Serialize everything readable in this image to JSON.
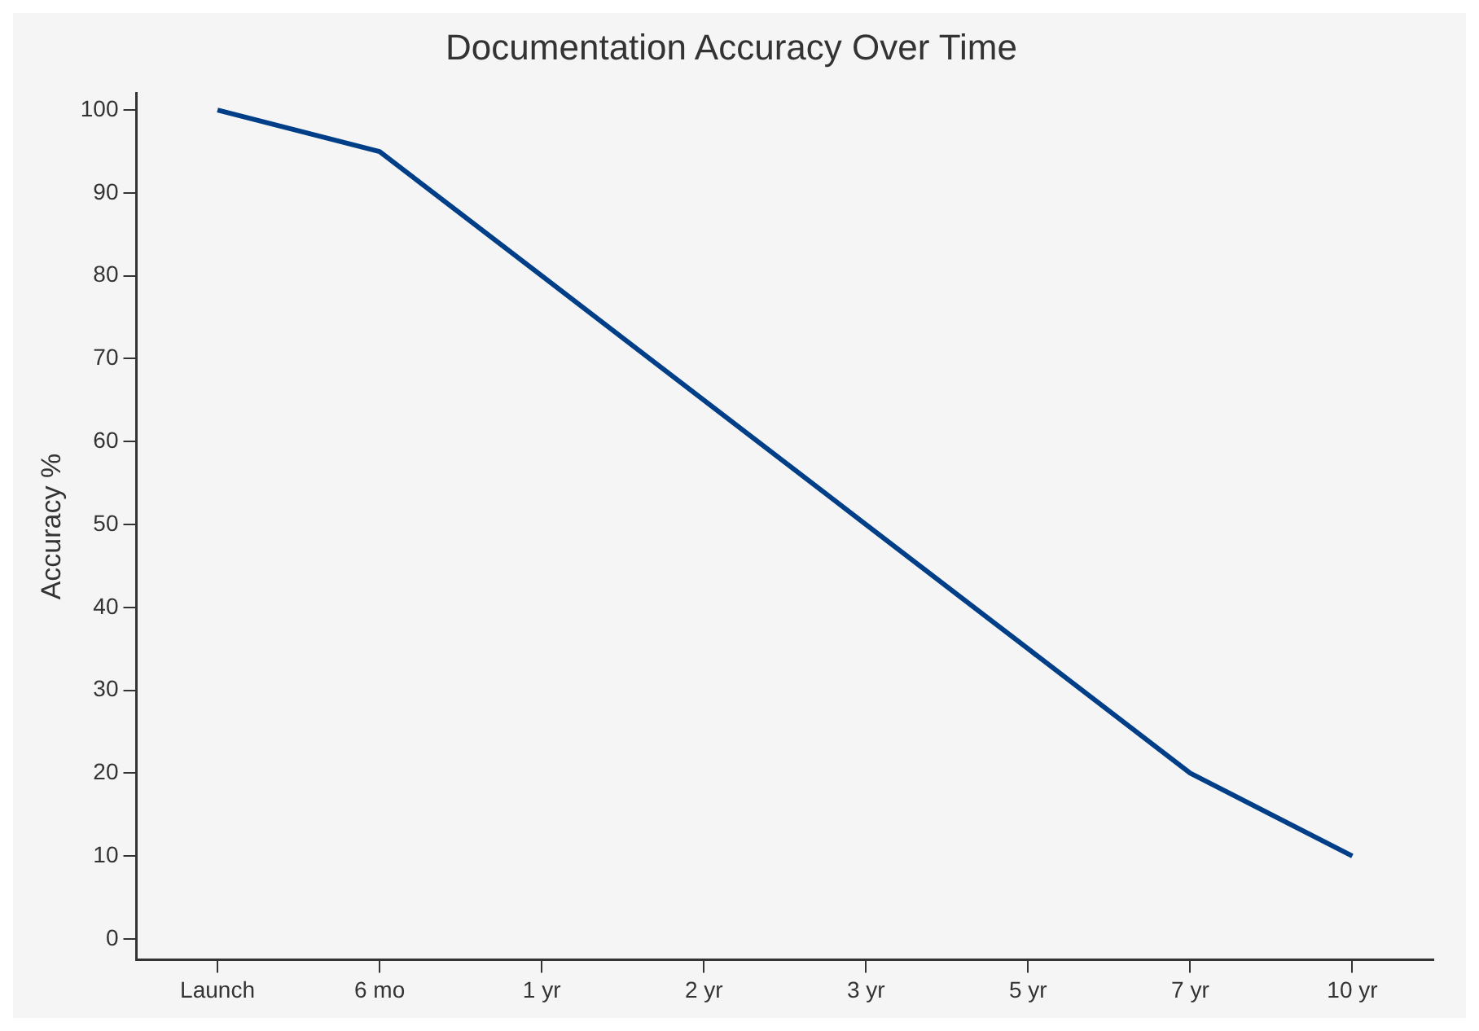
{
  "chart_data": {
    "type": "line",
    "title": "Documentation Accuracy Over Time",
    "ylabel": "Accuracy %",
    "categories": [
      "Launch",
      "6 mo",
      "1 yr",
      "2 yr",
      "3 yr",
      "5 yr",
      "7 yr",
      "10 yr"
    ],
    "series": [
      {
        "color": "#003f87",
        "values": [
          100,
          95,
          80,
          65,
          50,
          35,
          20,
          10
        ]
      }
    ],
    "ylim": [
      -2.5,
      102
    ],
    "yticks": [
      0,
      10,
      20,
      30,
      40,
      50,
      60,
      70,
      80,
      90,
      100
    ],
    "grid": false,
    "legend": false,
    "marker": "none",
    "line_style": "solid"
  }
}
